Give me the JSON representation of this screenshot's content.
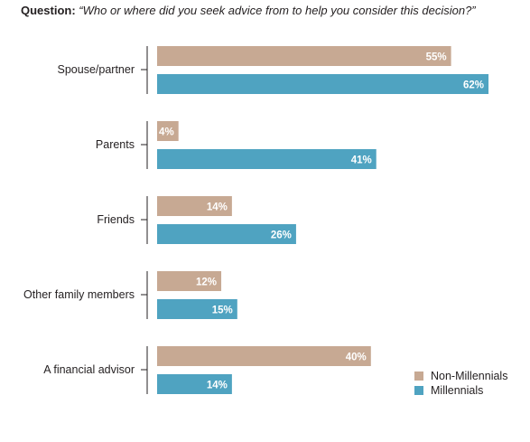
{
  "question": {
    "label": "Question:",
    "text": "“Who or where did you seek advice from to help you consider this decision?”"
  },
  "colors": {
    "non_millennials": "#c7a993",
    "millennials": "#4fa3c1",
    "axis": "#231f20"
  },
  "chart_data": {
    "type": "bar",
    "orientation": "horizontal",
    "categories": [
      "Spouse/partner",
      "Parents",
      "Friends",
      "Other family members",
      "A financial advisor"
    ],
    "series": [
      {
        "name": "Non-Millennials",
        "values": [
          55,
          4,
          14,
          12,
          40
        ],
        "labels": [
          "55%",
          "4%",
          "14%",
          "12%",
          "40%"
        ]
      },
      {
        "name": "Millennials",
        "values": [
          62,
          41,
          26,
          15,
          14
        ],
        "labels": [
          "62%",
          "41%",
          "26%",
          "15%",
          "14%"
        ]
      }
    ],
    "xlim": [
      0,
      62
    ],
    "grid": false,
    "legend_position": "bottom-right"
  }
}
